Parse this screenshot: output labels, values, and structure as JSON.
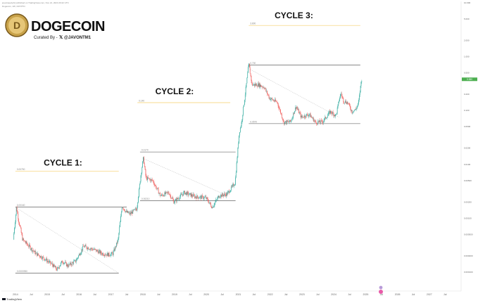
{
  "header": {
    "meta_line_1": "joeuniquely32 published on TradingView.com, Nov 21, 2024 20:22 UTC",
    "meta_line_2": "Dogecoin, 1W, CRYPTO",
    "brand": "DOGECOIN",
    "byline_prefix": "Curated By -",
    "byline_handle": "@JAVONTM1"
  },
  "footer": {
    "tradingview_label": "TradingView"
  },
  "colors": {
    "up": "#26a69a",
    "down": "#ef5350",
    "accent": "#4caf50",
    "target_line": "#f5cf69",
    "neutral_line": "#444444",
    "brand_gold": "#c8a24a"
  },
  "icons": {
    "logo": "dogecoin-coin-logo",
    "x_logo": "x-twitter-icon",
    "tradingview": "tradingview-logo-icon",
    "currency_badge": "coin-badge-icon"
  },
  "chart_data": {
    "type": "candlestick",
    "symbol": "Dogecoin",
    "x_axis": {
      "type": "date",
      "range": [
        "2013-12-01",
        "2028-01-01"
      ],
      "ticks": [
        {
          "x": "2014-01-01",
          "label": "2014"
        },
        {
          "x": "2014-07-01",
          "label": "Jul"
        },
        {
          "x": "2015-01-01",
          "label": "2015"
        },
        {
          "x": "2015-07-01",
          "label": "Jul"
        },
        {
          "x": "2016-01-01",
          "label": "2016"
        },
        {
          "x": "2016-07-01",
          "label": "Jul"
        },
        {
          "x": "2017-01-01",
          "label": "2017"
        },
        {
          "x": "2017-07-01",
          "label": "Jul"
        },
        {
          "x": "2018-01-01",
          "label": "2018"
        },
        {
          "x": "2018-07-01",
          "label": "Jul"
        },
        {
          "x": "2019-01-01",
          "label": "2019"
        },
        {
          "x": "2019-07-01",
          "label": "Jul"
        },
        {
          "x": "2020-01-01",
          "label": "2020"
        },
        {
          "x": "2020-07-01",
          "label": "Jul"
        },
        {
          "x": "2021-01-01",
          "label": "2021"
        },
        {
          "x": "2021-07-01",
          "label": "Jul"
        },
        {
          "x": "2022-01-01",
          "label": "2022"
        },
        {
          "x": "2022-07-01",
          "label": "Jul"
        },
        {
          "x": "2023-01-01",
          "label": "2023"
        },
        {
          "x": "2023-07-01",
          "label": "Jul"
        },
        {
          "x": "2024-01-01",
          "label": "2024"
        },
        {
          "x": "2024-07-01",
          "label": "Jul"
        },
        {
          "x": "2025-01-01",
          "label": "2025"
        },
        {
          "x": "2025-07-01",
          "label": "Jul"
        },
        {
          "x": "2026-01-01",
          "label": "2026"
        },
        {
          "x": "2026-07-01",
          "label": "Jul"
        },
        {
          "x": "2027-01-01",
          "label": "2027"
        },
        {
          "x": "2027-07-01",
          "label": "Jul"
        }
      ]
    },
    "y_axis": {
      "type": "log",
      "position": "right",
      "range": [
        5e-05,
        10
      ],
      "ticks": [
        10,
        5,
        2,
        1,
        0.5,
        0.2,
        0.1,
        0.05,
        0.02,
        0.01,
        0.005,
        0.002,
        0.001,
        0.0005,
        0.0002,
        0.0001
      ]
    },
    "last_price": 0.38,
    "grid": false,
    "legend": "none",
    "annotations": [
      {
        "text": "CYCLE 1:",
        "x": "2015-07-01",
        "y": 0.0095
      },
      {
        "text": "CYCLE 2:",
        "x": "2019-01-01",
        "y": 0.2
      },
      {
        "text": "CYCLE 3:",
        "x": "2022-10-01",
        "y": 5.2
      }
    ],
    "levels": [
      {
        "name": "cycle-1-target",
        "y": 0.0075,
        "x_start": "2014-01-01",
        "x_end": "2017-04-01",
        "style": "target"
      },
      {
        "name": "cycle-1-resistance",
        "y": 0.0016,
        "x_start": "2014-01-01",
        "x_end": "2017-07-01",
        "style": "solid"
      },
      {
        "name": "cycle-1-support",
        "y": 9.5e-05,
        "x_start": "2014-01-01",
        "x_end": "2017-04-01",
        "style": "solid"
      },
      {
        "name": "cycle-2-target",
        "y": 0.14,
        "x_start": "2017-11-01",
        "x_end": "2020-10-01",
        "style": "target"
      },
      {
        "name": "cycle-2-resistance",
        "y": 0.017,
        "x_start": "2017-12-01",
        "x_end": "2020-12-01",
        "style": "solid"
      },
      {
        "name": "cycle-2-support",
        "y": 0.0021,
        "x_start": "2017-12-01",
        "x_end": "2020-12-01",
        "style": "solid"
      },
      {
        "name": "cycle-3-target",
        "y": 3.8,
        "x_start": "2021-05-01",
        "x_end": "2024-11-01",
        "style": "target"
      },
      {
        "name": "cycle-3-resistance",
        "y": 0.7,
        "x_start": "2021-05-01",
        "x_end": "2024-11-01",
        "style": "solid"
      },
      {
        "name": "cycle-3-support",
        "y": 0.057,
        "x_start": "2021-05-01",
        "x_end": "2024-11-01",
        "style": "solid"
      }
    ],
    "trendlines": [
      {
        "from": {
          "x": "2014-01-01",
          "y": 0.0016
        },
        "to": {
          "x": "2017-04-01",
          "y": 9.5e-05
        }
      },
      {
        "from": {
          "x": "2018-01-01",
          "y": 0.013
        },
        "to": {
          "x": "2020-09-01",
          "y": 0.0026
        }
      },
      {
        "from": {
          "x": "2021-05-01",
          "y": 0.6
        },
        "to": {
          "x": "2024-03-01",
          "y": 0.075
        }
      }
    ],
    "anchors": [
      {
        "x": "2013-12-15",
        "y": 0.0004
      },
      {
        "x": "2014-01-20",
        "y": 0.0016
      },
      {
        "x": "2014-02-15",
        "y": 0.0009
      },
      {
        "x": "2014-04-01",
        "y": 0.0004
      },
      {
        "x": "2014-06-15",
        "y": 0.0003
      },
      {
        "x": "2014-09-01",
        "y": 0.00022
      },
      {
        "x": "2014-12-01",
        "y": 0.00018
      },
      {
        "x": "2015-03-01",
        "y": 0.00014
      },
      {
        "x": "2015-05-01",
        "y": 0.00011
      },
      {
        "x": "2015-07-01",
        "y": 0.00016
      },
      {
        "x": "2015-09-01",
        "y": 0.00013
      },
      {
        "x": "2015-12-01",
        "y": 0.00016
      },
      {
        "x": "2016-03-01",
        "y": 0.0003
      },
      {
        "x": "2016-07-01",
        "y": 0.00026
      },
      {
        "x": "2016-10-01",
        "y": 0.00022
      },
      {
        "x": "2016-12-15",
        "y": 0.00021
      },
      {
        "x": "2017-02-01",
        "y": 0.00022
      },
      {
        "x": "2017-04-01",
        "y": 0.0004
      },
      {
        "x": "2017-05-15",
        "y": 0.0017
      },
      {
        "x": "2017-07-01",
        "y": 0.0013
      },
      {
        "x": "2017-08-15",
        "y": 0.0012
      },
      {
        "x": "2017-11-01",
        "y": 0.0015
      },
      {
        "x": "2017-12-15",
        "y": 0.006
      },
      {
        "x": "2018-01-15",
        "y": 0.013
      },
      {
        "x": "2018-02-15",
        "y": 0.0055
      },
      {
        "x": "2018-05-01",
        "y": 0.005
      },
      {
        "x": "2018-08-01",
        "y": 0.0026
      },
      {
        "x": "2018-11-01",
        "y": 0.003
      },
      {
        "x": "2019-01-01",
        "y": 0.002
      },
      {
        "x": "2019-05-01",
        "y": 0.003
      },
      {
        "x": "2019-09-01",
        "y": 0.0025
      },
      {
        "x": "2020-01-01",
        "y": 0.0024
      },
      {
        "x": "2020-03-15",
        "y": 0.0016
      },
      {
        "x": "2020-06-01",
        "y": 0.0026
      },
      {
        "x": "2020-09-01",
        "y": 0.0028
      },
      {
        "x": "2020-12-01",
        "y": 0.0045
      },
      {
        "x": "2021-01-20",
        "y": 0.04
      },
      {
        "x": "2021-02-15",
        "y": 0.06
      },
      {
        "x": "2021-04-15",
        "y": 0.35
      },
      {
        "x": "2021-05-08",
        "y": 0.72
      },
      {
        "x": "2021-06-15",
        "y": 0.3
      },
      {
        "x": "2021-09-01",
        "y": 0.3
      },
      {
        "x": "2021-11-01",
        "y": 0.27
      },
      {
        "x": "2022-01-01",
        "y": 0.17
      },
      {
        "x": "2022-04-01",
        "y": 0.14
      },
      {
        "x": "2022-06-15",
        "y": 0.06
      },
      {
        "x": "2022-09-01",
        "y": 0.062
      },
      {
        "x": "2022-11-01",
        "y": 0.12
      },
      {
        "x": "2023-01-01",
        "y": 0.075
      },
      {
        "x": "2023-04-01",
        "y": 0.085
      },
      {
        "x": "2023-06-15",
        "y": 0.06
      },
      {
        "x": "2023-09-01",
        "y": 0.062
      },
      {
        "x": "2023-12-01",
        "y": 0.095
      },
      {
        "x": "2024-02-01",
        "y": 0.08
      },
      {
        "x": "2024-03-28",
        "y": 0.21
      },
      {
        "x": "2024-05-01",
        "y": 0.15
      },
      {
        "x": "2024-06-15",
        "y": 0.14
      },
      {
        "x": "2024-08-05",
        "y": 0.095
      },
      {
        "x": "2024-09-15",
        "y": 0.105
      },
      {
        "x": "2024-10-15",
        "y": 0.13
      },
      {
        "x": "2024-11-21",
        "y": 0.38
      }
    ]
  }
}
